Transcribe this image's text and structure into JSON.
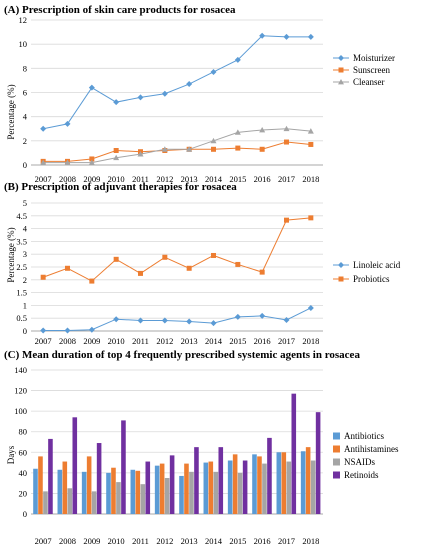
{
  "chart_data": [
    {
      "type": "line",
      "title": "(A) Prescription of skin care products  for rosacea",
      "ylabel": "Percentage (%)",
      "xlabel": "",
      "x": [
        "2007",
        "2008",
        "2009",
        "2010",
        "2011",
        "2012",
        "2013",
        "2014",
        "2015",
        "2016",
        "2017",
        "2018"
      ],
      "ylim": [
        0,
        12
      ],
      "yticks": [
        "0",
        "2",
        "4",
        "6",
        "8",
        "10",
        "12"
      ],
      "grid": true,
      "legend_position": "right",
      "series": [
        {
          "name": "Moisturizer",
          "color": "#5b9bd5",
          "marker": "diamond",
          "values": [
            3.0,
            3.4,
            6.4,
            5.2,
            5.6,
            5.9,
            6.7,
            7.7,
            8.7,
            10.7,
            10.6,
            10.6
          ]
        },
        {
          "name": "Sunscreen",
          "color": "#ed7d31",
          "marker": "square",
          "values": [
            0.3,
            0.3,
            0.5,
            1.2,
            1.1,
            1.2,
            1.3,
            1.3,
            1.4,
            1.3,
            1.9,
            1.7
          ]
        },
        {
          "name": "Cleanser",
          "color": "#a5a5a5",
          "marker": "triangle",
          "values": [
            0.2,
            0.2,
            0.2,
            0.6,
            0.9,
            1.3,
            1.3,
            2.0,
            2.7,
            2.9,
            3.0,
            2.8
          ]
        }
      ]
    },
    {
      "type": "line",
      "title": "(B) Prescription of adjuvant  therapies for rosacea",
      "ylabel": "Percentage (%)",
      "xlabel": "",
      "x": [
        "2007",
        "2008",
        "2009",
        "2010",
        "2011",
        "2012",
        "2013",
        "2014",
        "2015",
        "2016",
        "2017",
        "2018"
      ],
      "ylim": [
        0,
        5
      ],
      "yticks": [
        "0",
        "0.5",
        "1",
        "1.5",
        "2",
        "2.5",
        "3",
        "3.5",
        "4",
        "4.5",
        "5"
      ],
      "grid": true,
      "legend_position": "right",
      "series": [
        {
          "name": "Linoleic acid",
          "color": "#5b9bd5",
          "marker": "diamond",
          "values": [
            0.02,
            0.02,
            0.05,
            0.46,
            0.41,
            0.41,
            0.37,
            0.31,
            0.55,
            0.59,
            0.43,
            0.9
          ]
        },
        {
          "name": "Probiotics",
          "color": "#ed7d31",
          "marker": "square",
          "values": [
            2.1,
            2.45,
            1.95,
            2.8,
            2.25,
            2.88,
            2.45,
            2.95,
            2.6,
            2.3,
            4.33,
            4.42
          ]
        }
      ]
    },
    {
      "type": "bar",
      "title": "(C) Mean duration  of top 4 frequently prescribed systemic agents in rosacea",
      "ylabel": "Days",
      "xlabel": "",
      "categories": [
        "2007",
        "2008",
        "2009",
        "2010",
        "2011",
        "2012",
        "2013",
        "2014",
        "2015",
        "2016",
        "2017",
        "2018"
      ],
      "ylim": [
        0,
        140
      ],
      "yticks": [
        "0",
        "20",
        "40",
        "60",
        "80",
        "100",
        "120",
        "140"
      ],
      "grid": true,
      "legend_position": "right",
      "series": [
        {
          "name": "Antibiotics",
          "color": "#5b9bd5",
          "values": [
            44,
            43,
            41,
            40,
            43,
            47,
            37,
            50,
            52,
            58,
            60,
            61
          ]
        },
        {
          "name": "Antihistamines",
          "color": "#ed7d31",
          "values": [
            56,
            51,
            56,
            45,
            42,
            49,
            49,
            51,
            58,
            56,
            60,
            65
          ]
        },
        {
          "name": "NSAIDs",
          "color": "#a5a5a5",
          "values": [
            22,
            25,
            22,
            31,
            29,
            35,
            41,
            41,
            40,
            49,
            51,
            52
          ]
        },
        {
          "name": "Retinoids",
          "color": "#7030a0",
          "values": [
            73,
            94,
            69,
            91,
            51,
            57,
            65,
            65,
            52,
            74,
            117,
            99
          ]
        }
      ]
    }
  ]
}
